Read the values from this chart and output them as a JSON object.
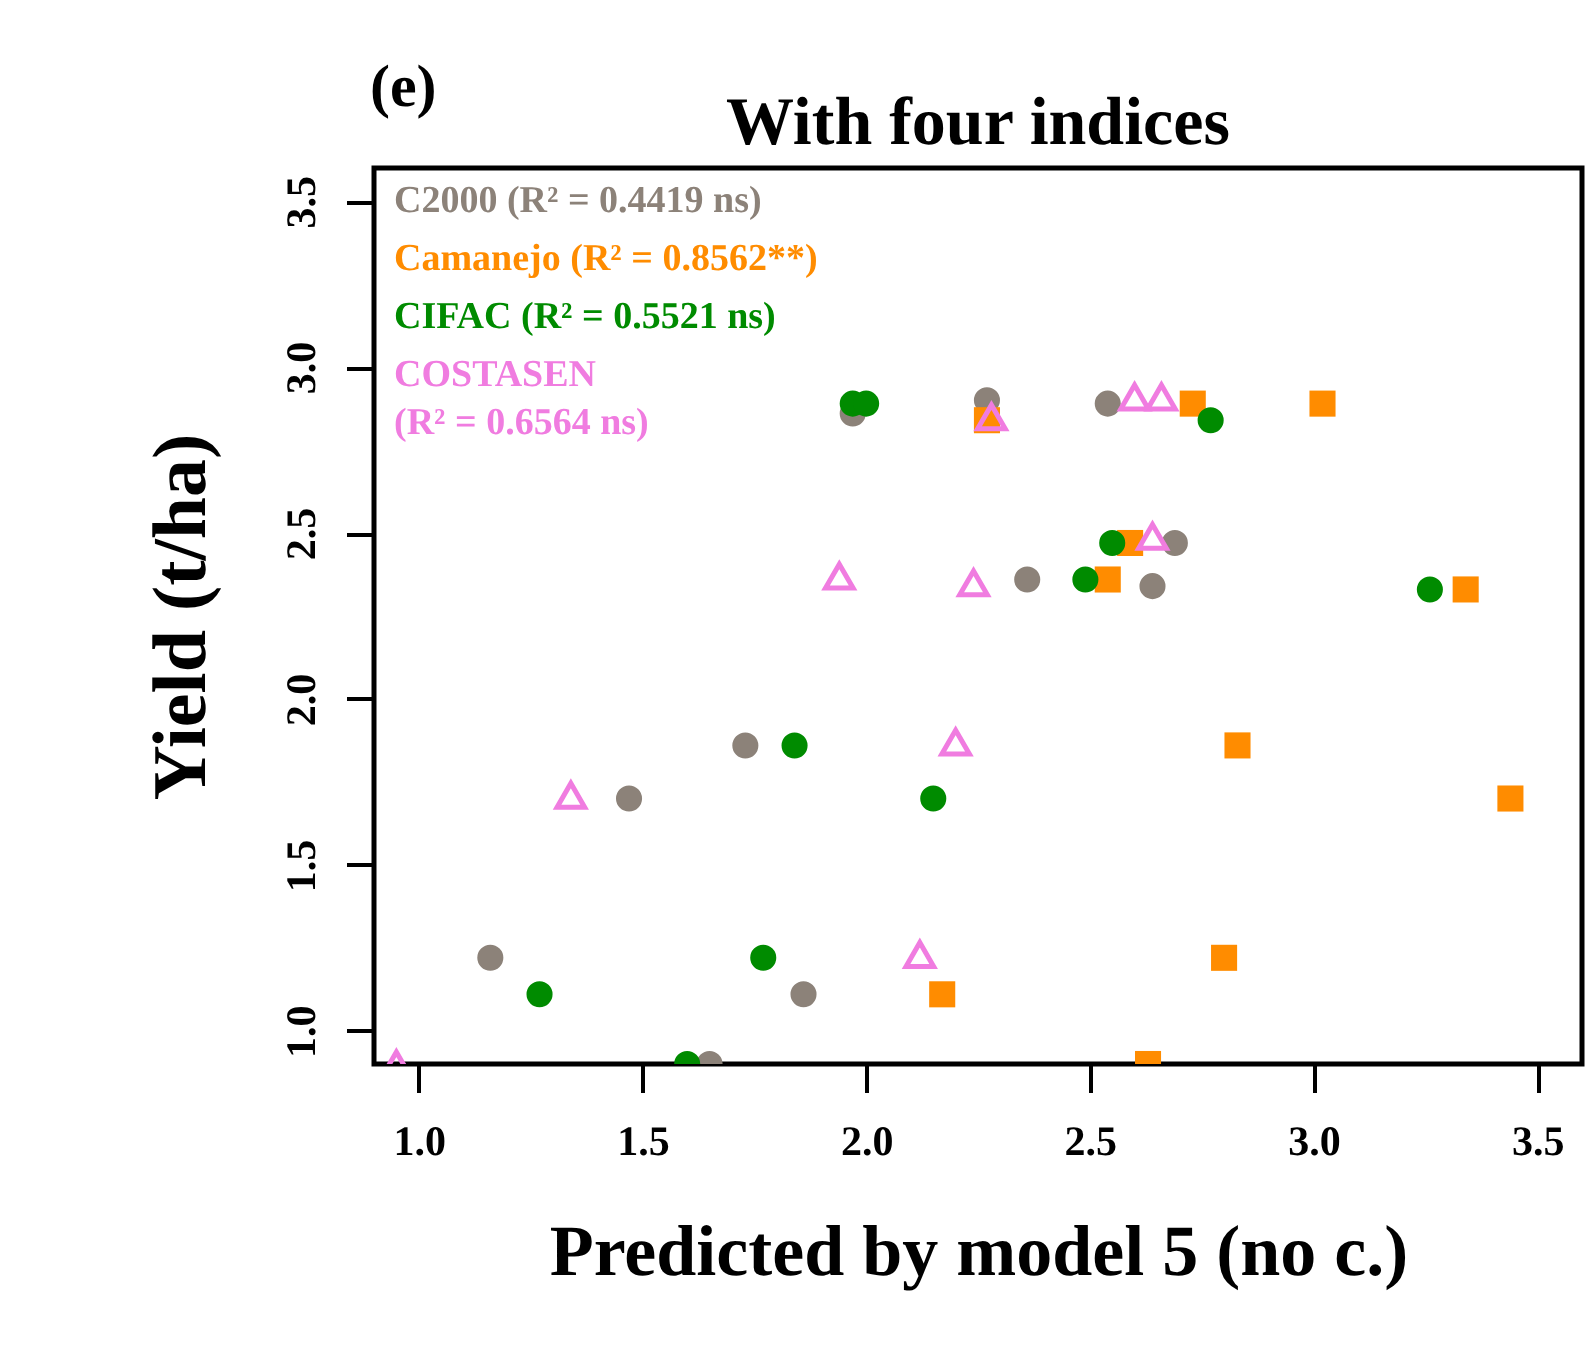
{
  "chart_data": {
    "type": "scatter",
    "title": "With four indices",
    "xlabel": "Predicted by model 5 (no c.)",
    "ylabel": "Yield (t/ha)",
    "annotations": [
      "(e)"
    ],
    "xlim": [
      0.9,
      3.6
    ],
    "ylim": [
      0.9,
      3.6
    ],
    "xticks": [
      {
        "value": 1,
        "label": "1.0"
      },
      1.5,
      {
        "value": 2,
        "label": "2.0"
      },
      2.5,
      {
        "value": 3,
        "label": "3.0"
      },
      3.5
    ],
    "yticks": [
      {
        "value": 1,
        "label": "1.0"
      },
      1.5,
      {
        "value": 2,
        "label": "2.0"
      },
      2.5,
      {
        "value": 3,
        "label": "3.0"
      },
      3.5
    ],
    "grid": false,
    "legend": "top left",
    "series": [
      {
        "name": "C2000 (R² = 0.4419 ns)",
        "color": "#8c8279",
        "marker": "circle",
        "x": [
          1.97,
          2.27,
          2.54,
          2.69,
          2.36,
          2.64,
          1.73,
          1.47,
          1.16,
          1.86,
          1.65
        ],
        "values": [
          2.86,
          2.9,
          2.89,
          2.47,
          2.36,
          2.34,
          1.86,
          1.7,
          1.22,
          1.11,
          0.9
        ]
      },
      {
        "name": "Camanejo (R² = 0.8562**)",
        "color": "#ff8c00",
        "marker": "square",
        "x": [
          2.27,
          2.73,
          3.02,
          2.59,
          2.54,
          3.34,
          2.83,
          3.44,
          2.8,
          2.17,
          2.63
        ],
        "values": [
          2.84,
          2.89,
          2.89,
          2.47,
          2.36,
          2.33,
          1.86,
          1.7,
          1.22,
          1.11,
          0.9
        ]
      },
      {
        "name": "CIFAC (R² = 0.5521 ns)",
        "color": "#008b00",
        "marker": "circle",
        "x": [
          1.97,
          2.0,
          2.77,
          2.55,
          2.49,
          3.26,
          1.84,
          2.15,
          1.27,
          1.77,
          1.6
        ],
        "values": [
          2.89,
          2.89,
          2.84,
          2.47,
          2.36,
          2.33,
          1.86,
          1.7,
          1.11,
          1.22,
          0.9
        ]
      },
      {
        "name": "COSTASEN\n(R² = 0.6564 ns)",
        "color": "#f07ce0",
        "marker": "triangle",
        "x": [
          2.28,
          2.6,
          2.66,
          2.64,
          1.94,
          2.24,
          2.2,
          1.34,
          2.12,
          0.95
        ],
        "values": [
          2.85,
          2.91,
          2.91,
          2.49,
          2.37,
          2.35,
          1.87,
          1.71,
          1.23,
          0.9
        ]
      }
    ]
  }
}
